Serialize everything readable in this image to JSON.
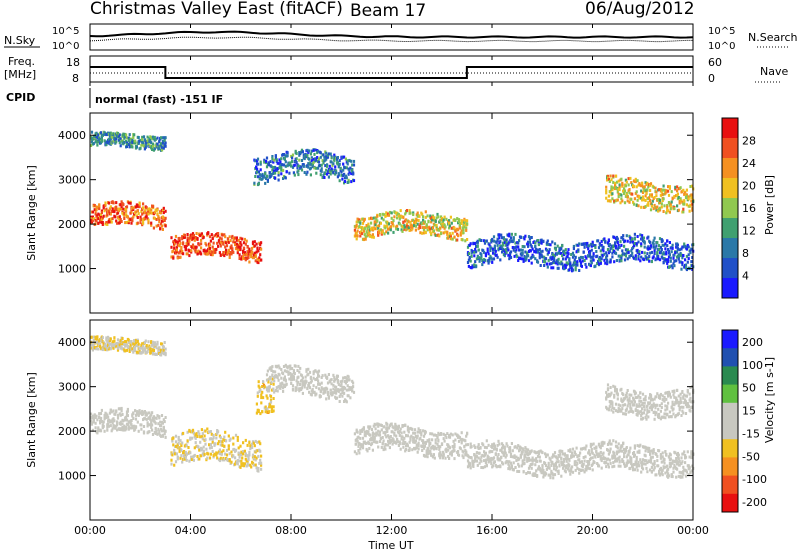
{
  "header": {
    "title": "Christmas Valley East (fitACF)",
    "beam": "Beam 17",
    "date": "06/Aug/2012"
  },
  "colors": {
    "power_scale": [
      "#1a1aff",
      "#2050c8",
      "#2a78a8",
      "#40a070",
      "#90c850",
      "#f0c020",
      "#f59020",
      "#f05020",
      "#e81010"
    ],
    "velocity_scale": [
      "#e81010",
      "#f05020",
      "#f59020",
      "#f0c020",
      "#c8c8c0",
      "#c8c8c0",
      "#60c040",
      "#2a8a50",
      "#2050b0",
      "#1a1aff"
    ]
  },
  "noise_panel": {
    "left_label": "N.Sky",
    "right_label": "N.Search",
    "left_ticks": [
      "10^5",
      "10^0"
    ],
    "right_ticks": [
      "10^5",
      "10^0"
    ]
  },
  "freq_panel": {
    "left_label_line1": "Freq.",
    "left_label_line2": "[MHz]",
    "right_label": "Nave",
    "left_ticks": [
      "18",
      "8"
    ],
    "right_ticks": [
      "60",
      "0"
    ]
  },
  "cpid": {
    "label": "CPID",
    "mode": "normal (fast) -151 IF"
  },
  "axes": {
    "ylabel": "Slant Range [km]",
    "xlabel": "Time UT",
    "y_ticks": [
      "4000",
      "3000",
      "2000",
      "1000"
    ],
    "x_ticks": [
      "00:00",
      "04:00",
      "08:00",
      "12:00",
      "16:00",
      "20:00",
      "00:00"
    ]
  },
  "power_colorbar": {
    "label": "Power [dB]",
    "ticks": [
      "28",
      "24",
      "20",
      "16",
      "12",
      "8",
      "4"
    ]
  },
  "velocity_colorbar": {
    "label": "Velocity [m s-1]",
    "ticks": [
      "200",
      "100",
      "50",
      "15",
      "-15",
      "-50",
      "-100",
      "-200"
    ]
  },
  "chart_data": [
    {
      "type": "heatmap",
      "quantity": "Power",
      "unit": "dB",
      "ylabel": "Slant Range [km]",
      "xlabel": "Time UT",
      "xlim": [
        "00:00",
        "00:00"
      ],
      "ylim": [
        0,
        4500
      ],
      "color_range": [
        0,
        30
      ],
      "bands": [
        {
          "t_start": 0.0,
          "t_end": 3.0,
          "range_center_km": 2200,
          "half_width_km": 250,
          "power_db": 24
        },
        {
          "t_start": 0.0,
          "t_end": 3.0,
          "range_center_km": 3900,
          "half_width_km": 150,
          "power_db": 10
        },
        {
          "t_start": 3.2,
          "t_end": 6.8,
          "range_center_km": 1500,
          "half_width_km": 250,
          "power_db": 26
        },
        {
          "t_start": 6.5,
          "t_end": 10.5,
          "range_center_km": 3300,
          "half_width_km": 300,
          "power_db": 8
        },
        {
          "t_start": 10.5,
          "t_end": 15.0,
          "range_center_km": 2000,
          "half_width_km": 250,
          "power_db": 18
        },
        {
          "t_start": 15.0,
          "t_end": 24.0,
          "range_center_km": 1400,
          "half_width_km": 300,
          "power_db": 6
        },
        {
          "t_start": 20.5,
          "t_end": 24.0,
          "range_center_km": 2700,
          "half_width_km": 300,
          "power_db": 18
        }
      ]
    },
    {
      "type": "heatmap",
      "quantity": "Velocity",
      "unit": "m s-1",
      "ylabel": "Slant Range [km]",
      "xlabel": "Time UT",
      "xlim": [
        "00:00",
        "00:00"
      ],
      "ylim": [
        0,
        4500
      ],
      "color_range": [
        -250,
        250
      ],
      "bands": [
        {
          "t_start": 0.0,
          "t_end": 3.0,
          "range_center_km": 2200,
          "half_width_km": 250,
          "velocity": 0
        },
        {
          "t_start": 0.0,
          "t_end": 3.0,
          "range_center_km": 3950,
          "half_width_km": 150,
          "velocity": -40
        },
        {
          "t_start": 3.2,
          "t_end": 6.8,
          "range_center_km": 1600,
          "half_width_km": 350,
          "velocity": -45
        },
        {
          "t_start": 6.6,
          "t_end": 7.3,
          "range_center_km": 2900,
          "half_width_km": 400,
          "velocity": -70
        },
        {
          "t_start": 7.0,
          "t_end": 10.5,
          "range_center_km": 3100,
          "half_width_km": 300,
          "velocity": 0
        },
        {
          "t_start": 10.5,
          "t_end": 15.0,
          "range_center_km": 1800,
          "half_width_km": 300,
          "velocity": 10
        },
        {
          "t_start": 15.0,
          "t_end": 24.0,
          "range_center_km": 1400,
          "half_width_km": 300,
          "velocity": 0
        },
        {
          "t_start": 20.5,
          "t_end": 24.0,
          "range_center_km": 2700,
          "half_width_km": 300,
          "velocity": 0
        }
      ]
    }
  ]
}
